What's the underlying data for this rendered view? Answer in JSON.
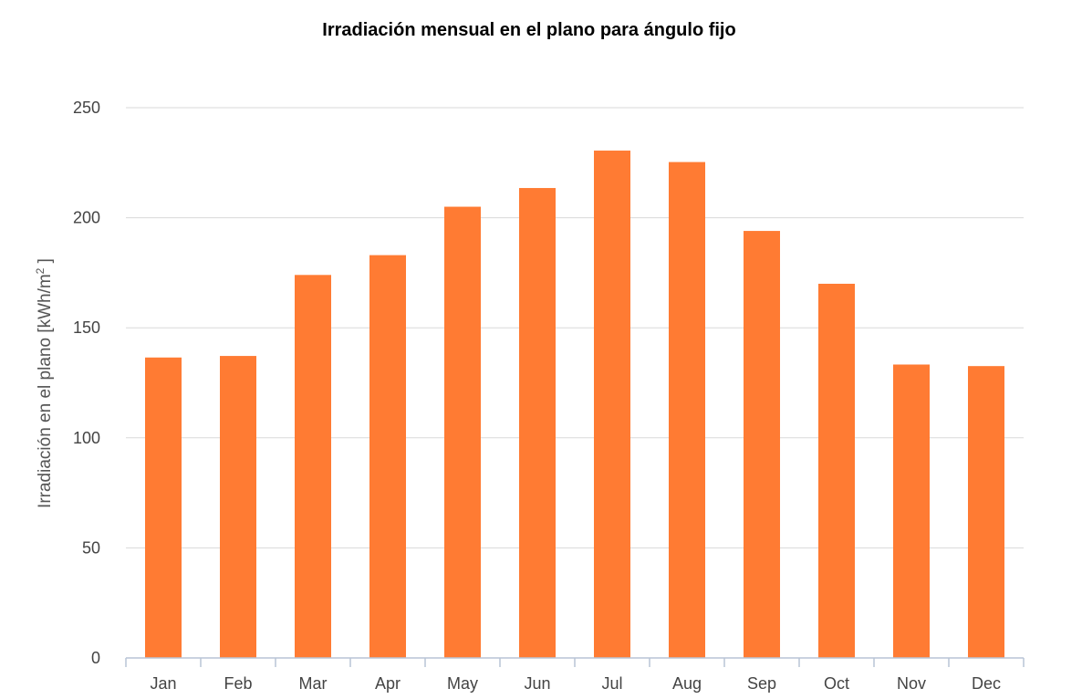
{
  "chart_data": {
    "type": "bar",
    "title": "Irradiación mensual en el plano para ángulo fijo",
    "ylabel_main": "Irradiación en el plano [kWh/m",
    "ylabel_sup": "2",
    "ylabel_end": " ]",
    "categories": [
      "Jan",
      "Feb",
      "Mar",
      "Apr",
      "May",
      "Jun",
      "Jul",
      "Aug",
      "Sep",
      "Oct",
      "Nov",
      "Dec"
    ],
    "values": [
      136.5,
      137.2,
      174.0,
      183.0,
      205.0,
      213.5,
      230.5,
      225.3,
      194.0,
      170.0,
      133.3,
      132.6
    ],
    "ylim": [
      0,
      250
    ],
    "yticks": [
      0,
      50,
      100,
      150,
      200,
      250
    ],
    "grid": true,
    "legend": "none",
    "colors": {
      "bar": "#ff7b33"
    }
  }
}
